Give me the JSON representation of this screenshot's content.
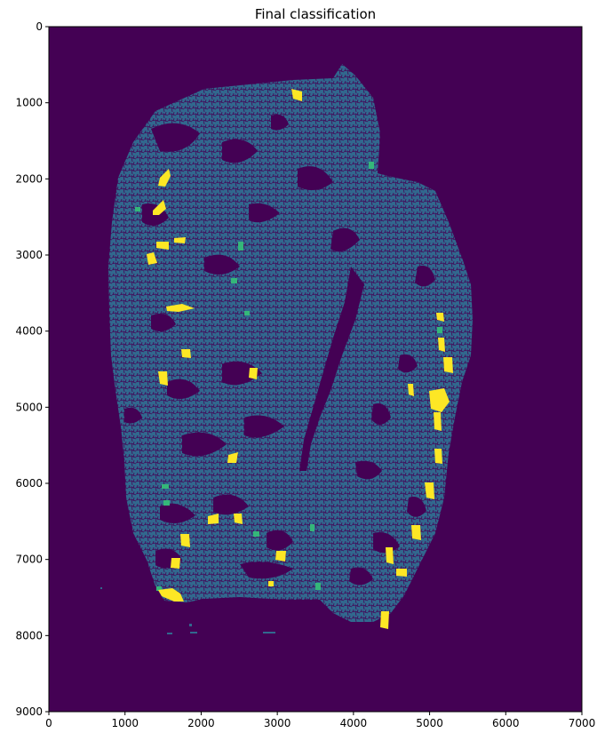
{
  "figure": {
    "title": "Final classification",
    "colors": {
      "background": "#440154",
      "tissue": "#31688e",
      "tissue_edge": "#2a5a82",
      "class_green": "#35b779",
      "class_yellow": "#fde725"
    }
  },
  "chart_data": {
    "type": "heatmap",
    "title": "Final classification",
    "xlabel": "",
    "ylabel": "",
    "xlim": [
      0,
      7000
    ],
    "ylim": [
      9000,
      0
    ],
    "x_ticks": [
      "0",
      "1000",
      "2000",
      "3000",
      "4000",
      "5000",
      "6000",
      "7000"
    ],
    "y_ticks": [
      "0",
      "1000",
      "2000",
      "3000",
      "4000",
      "5000",
      "6000",
      "7000",
      "8000",
      "9000"
    ],
    "colormap": "viridis",
    "classes": [
      {
        "color": "#440154"
      },
      {
        "color": "#31688e"
      },
      {
        "color": "#35b779"
      },
      {
        "color": "#fde725"
      }
    ]
  }
}
